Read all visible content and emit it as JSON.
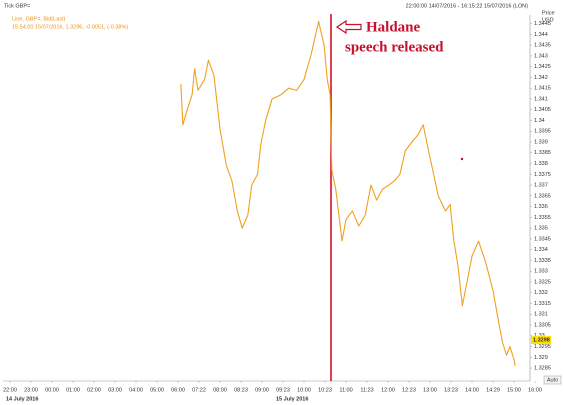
{
  "chart_data": {
    "type": "line",
    "title": "Tick GBP=",
    "subtitle": "22:00:00 14/07/2016 - 16:15:22 15/07/2016 (LON)",
    "legend_detail": "15:54:00 15/07/2016, 1.3296, -0.0051, (-0.38%)",
    "y_label": "Price",
    "y_unit": "USD",
    "date_labels": [
      "14 July 2016",
      "15 July 2016"
    ],
    "annotation": [
      "Haldane",
      "speech released"
    ],
    "last_value": 1.3298,
    "scale_mode": "Auto",
    "xticks": [
      "22:00",
      "23:00",
      "00:00",
      "01:00",
      "02:00",
      "03:00",
      "04:00",
      "05:00",
      "06:00",
      "07:22",
      "08:00",
      "08:23",
      "09:00",
      "09:23",
      "10:00",
      "10:23",
      "11:00",
      "11:23",
      "12:00",
      "12:23",
      "13:00",
      "13:23",
      "14:00",
      "14:29",
      "15:00",
      "16:00"
    ],
    "ylim": [
      1.3279,
      1.3449
    ],
    "yticks": [
      1.3445,
      1.344,
      1.3435,
      1.343,
      1.3425,
      1.342,
      1.3415,
      1.341,
      1.3405,
      1.34,
      1.3395,
      1.339,
      1.3385,
      1.338,
      1.3375,
      1.337,
      1.3365,
      1.336,
      1.3355,
      1.335,
      1.3345,
      1.334,
      1.3335,
      1.333,
      1.3325,
      1.332,
      1.3315,
      1.331,
      1.3305,
      1.33,
      1.3295,
      1.329,
      1.3285
    ],
    "grid": false,
    "series": [
      {
        "name": "Line, GBP=, Bid(Last)",
        "color": "#f0a020",
        "x": [
          "06:11",
          "06:19",
          "06:36",
          "06:55",
          "07:05",
          "07:18",
          "07:32",
          "07:39",
          "07:49",
          "08:00",
          "08:07",
          "08:13",
          "08:19",
          "08:25",
          "08:35",
          "08:42",
          "08:52",
          "08:58",
          "09:04",
          "09:11",
          "09:21",
          "09:33",
          "09:47",
          "10:00",
          "10:08",
          "10:16",
          "10:22",
          "10:27",
          "10:32",
          "10:35",
          "10:42",
          "10:53",
          "11:00",
          "11:07",
          "11:14",
          "11:21",
          "11:30",
          "11:40",
          "11:50",
          "12:01",
          "12:07",
          "12:13",
          "12:19",
          "12:31",
          "12:38",
          "12:48",
          "12:55",
          "13:04",
          "13:09",
          "13:17",
          "13:22",
          "13:28",
          "13:35",
          "13:43",
          "13:52",
          "14:00",
          "14:09",
          "14:19",
          "14:29",
          "14:37",
          "14:43",
          "14:49",
          "14:54",
          "15:00",
          "15:03"
        ],
        "values": [
          1.3417,
          1.3398,
          1.3405,
          1.3412,
          1.3424,
          1.3414,
          1.3419,
          1.3428,
          1.3421,
          1.3396,
          1.3379,
          1.3372,
          1.3358,
          1.335,
          1.3356,
          1.337,
          1.3375,
          1.3389,
          1.34,
          1.341,
          1.3412,
          1.3415,
          1.3414,
          1.3419,
          1.3431,
          1.3446,
          1.3435,
          1.3419,
          1.3412,
          1.3377,
          1.3368,
          1.3344,
          1.3354,
          1.3358,
          1.3351,
          1.3356,
          1.337,
          1.3363,
          1.3368,
          1.337,
          1.3372,
          1.3375,
          1.3386,
          1.3391,
          1.3393,
          1.3398,
          1.3389,
          1.3375,
          1.3365,
          1.3358,
          1.3361,
          1.3344,
          1.3333,
          1.3314,
          1.3326,
          1.3337,
          1.3344,
          1.3334,
          1.3321,
          1.3307,
          1.3297,
          1.3291,
          1.3295,
          1.3289,
          1.3286
        ]
      }
    ]
  }
}
